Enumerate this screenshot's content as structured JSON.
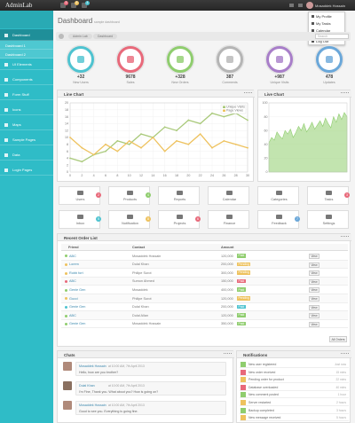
{
  "topbar": {
    "logo": "AdminLab",
    "badges": [
      3,
      5,
      4
    ],
    "user": "Mosaddek Hossain",
    "menu": [
      "My Profile",
      "My Tasks",
      "Calendar",
      "Log Out"
    ]
  },
  "sidebar": [
    {
      "label": "Dashboard",
      "active": true
    },
    {
      "label": "Dashboard 1",
      "sub": true
    },
    {
      "label": "Dashboard 2",
      "sub": true
    },
    {
      "label": "UI Elements"
    },
    {
      "label": "Components"
    },
    {
      "label": "Form Stuff"
    },
    {
      "label": "Icons"
    },
    {
      "label": "Maps"
    },
    {
      "label": "Sample Pages"
    },
    {
      "label": "Data"
    },
    {
      "label": "Login Pages"
    }
  ],
  "header": {
    "title": "Dashboard",
    "subtitle": "sample dashboard",
    "breadcrumb": [
      "Admin Lab",
      "Dashboard"
    ],
    "search": "Search"
  },
  "stats": [
    {
      "value": "+32",
      "label": "New Users",
      "color": "#4ec3d0"
    },
    {
      "value": "9678",
      "label": "Sales",
      "color": "#e8697a"
    },
    {
      "value": "+328",
      "label": "New Orders",
      "color": "#8fcd6e"
    },
    {
      "value": "387",
      "label": "Comments",
      "color": "#b5b5b5"
    },
    {
      "value": "+987",
      "label": "Unique Visits",
      "color": "#a87ec9"
    },
    {
      "value": "478",
      "label": "Updates",
      "color": "#6aa7d9"
    }
  ],
  "line_chart": {
    "type": "line",
    "title": "Line Chart",
    "x": [
      0,
      2,
      4,
      6,
      8,
      10,
      12,
      14,
      16,
      18,
      20,
      22,
      24,
      26,
      28,
      30
    ],
    "series": [
      {
        "name": "Unique Visits",
        "color": "#a9c97a",
        "values": [
          4,
          3,
          5,
          6,
          9,
          8,
          11,
          10,
          13,
          12,
          15,
          14,
          17,
          16,
          17,
          15
        ]
      },
      {
        "name": "Page Views",
        "color": "#eec25e",
        "values": [
          10,
          7,
          5,
          8,
          6,
          9,
          7,
          10,
          6,
          9,
          8,
          11,
          7,
          9,
          8,
          7
        ]
      }
    ],
    "xlim": [
      0,
      30
    ],
    "ylim": [
      0,
      20
    ],
    "xticks": [
      0,
      2,
      4,
      6,
      8,
      10,
      12,
      14,
      16,
      18,
      20,
      22,
      24,
      26,
      28,
      30
    ],
    "yticks": [
      0,
      2,
      4,
      6,
      8,
      10,
      12,
      14,
      16,
      18,
      20
    ]
  },
  "live_chart": {
    "type": "area",
    "title": "Live Chart",
    "color": "#8fcd6e",
    "x": [
      0,
      1,
      2,
      3,
      4,
      5,
      6,
      7,
      8,
      9,
      10,
      11,
      12,
      13,
      14,
      15,
      16,
      17,
      18,
      19,
      20,
      21,
      22,
      23,
      24,
      25,
      26,
      27,
      28,
      29
    ],
    "values": [
      42,
      50,
      46,
      58,
      52,
      48,
      60,
      55,
      62,
      50,
      57,
      66,
      60,
      70,
      58,
      64,
      72,
      62,
      68,
      74,
      66,
      78,
      70,
      64,
      80,
      72,
      84,
      76,
      86,
      80
    ],
    "xlim": [
      0,
      29
    ],
    "ylim": [
      0,
      100
    ],
    "yticks": [
      0,
      20,
      40,
      60,
      80,
      100
    ]
  },
  "shortcuts": [
    {
      "label": "Users",
      "badge": 2,
      "color": "#e8697a"
    },
    {
      "label": "Products",
      "badge": 4,
      "color": "#8fcd6e"
    },
    {
      "label": "Reports"
    },
    {
      "label": "Calendar"
    },
    {
      "label": "Categories"
    },
    {
      "label": "Tasks",
      "badge": 3,
      "color": "#e8697a"
    },
    {
      "label": "Inbox",
      "badge": 5,
      "color": "#4ec3d0"
    },
    {
      "label": "Notification",
      "badge": 8,
      "color": "#eec25e"
    },
    {
      "label": "Projects",
      "badge": 6,
      "color": "#e8697a"
    },
    {
      "label": "Finance"
    },
    {
      "label": "Feedback",
      "badge": 7,
      "color": "#6aa7d9"
    },
    {
      "label": "Settings"
    }
  ],
  "orders": {
    "title": "Recent Order List",
    "columns": [
      "Friend",
      "Contact",
      "Amount"
    ],
    "action": "View",
    "button": "All Orders",
    "rows": [
      {
        "name": "ABC",
        "contact": "Mosaddek Hossain",
        "amount": "120,000",
        "status": "Paid",
        "color": "#8fcd6e"
      },
      {
        "name": "Lorem",
        "contact": "Dulal Khan",
        "amount": "200,000",
        "status": "Pending",
        "color": "#eec25e"
      },
      {
        "name": "Robb fort",
        "contact": "Philipe Surot",
        "amount": "300,000",
        "status": "Pending",
        "color": "#eec25e"
      },
      {
        "name": "ABC",
        "contact": "Sumon Ahmed",
        "amount": "150,000",
        "status": "Paid",
        "color": "#e8697a"
      },
      {
        "name": "Genie Gen",
        "contact": "Mosaddek",
        "amount": "400,000",
        "status": "Paid",
        "color": "#8fcd6e"
      },
      {
        "name": "Gucci",
        "contact": "Philipe Surot",
        "amount": "120,000",
        "status": "Pending",
        "color": "#eec25e"
      },
      {
        "name": "Genie Gen",
        "contact": "Dulal Khan",
        "amount": "200,000",
        "status": "Paid",
        "color": "#4ec3d0"
      },
      {
        "name": "ABC",
        "contact": "Dulal Allan",
        "amount": "120,000",
        "status": "Paid",
        "color": "#8fcd6e"
      },
      {
        "name": "Genie Gen",
        "contact": "Mosaddek Hossain",
        "amount": "350,000",
        "status": "Paid",
        "color": "#8fcd6e"
      }
    ]
  },
  "chats": {
    "title": "Chats",
    "messages": [
      {
        "author": "Mosaddek Hossain",
        "time": "at 10:00 AM, 7th April 2013",
        "text": "Hello, how are you brother?"
      },
      {
        "author": "Dulal Khan",
        "time": "at 10:00 AM, 7th April 2013",
        "text": "I'm Fine, Thank you. What about you? How is going on?"
      },
      {
        "author": "Mosaddek Hossain",
        "time": "at 10:00 AM, 7th April 2013",
        "text": "Good to see you. Everything is going fine."
      }
    ]
  },
  "notifications": {
    "title": "Notifications",
    "items": [
      {
        "text": "New user registered",
        "time": "Just now",
        "color": "#8fcd6e"
      },
      {
        "text": "New order received",
        "time": "15 mins",
        "color": "#e8697a"
      },
      {
        "text": "Pending order for product",
        "time": "22 mins",
        "color": "#eec25e"
      },
      {
        "text": "Database overloaded",
        "time": "40 mins",
        "color": "#e8697a"
      },
      {
        "text": "New comment posted",
        "time": "1 hour",
        "color": "#8fcd6e"
      },
      {
        "text": "Server restarted",
        "time": "2 hours",
        "color": "#eec25e"
      },
      {
        "text": "Backup completed",
        "time": "3 hours",
        "color": "#8fcd6e"
      },
      {
        "text": "New message received",
        "time": "5 hours",
        "color": "#eec25e"
      }
    ]
  }
}
